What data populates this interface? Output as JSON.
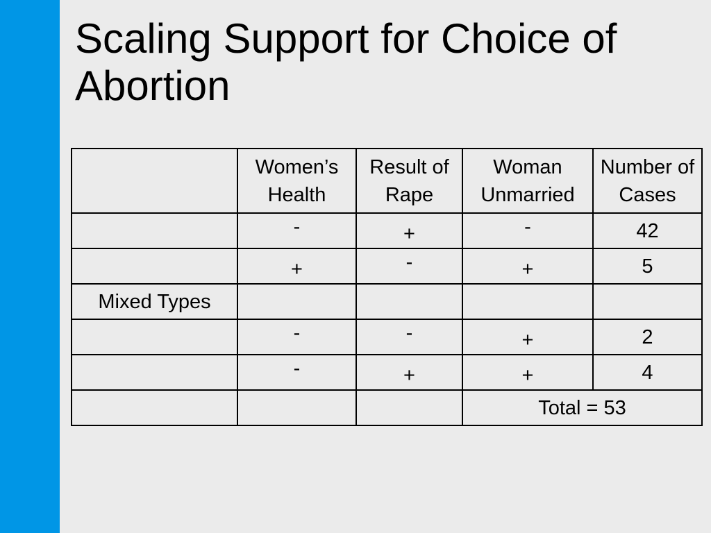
{
  "slide": {
    "title": "Scaling Support for Choice of Abortion",
    "accent_color": "#0096e6",
    "background_color": "#ebebeb"
  },
  "table": {
    "headers": [
      "",
      "Women’s Health",
      "Result of Rape",
      "Woman Unmarried",
      "Number of Cases"
    ],
    "rows": [
      [
        "",
        "-",
        "+",
        "-",
        "42"
      ],
      [
        "",
        "+",
        "-",
        "+",
        "5"
      ],
      [
        "Mixed Types",
        "",
        "",
        "",
        ""
      ],
      [
        "",
        "-",
        "-",
        "+",
        "2"
      ],
      [
        "",
        "-",
        "+",
        "+",
        "4"
      ]
    ],
    "total_label": "Total = 53"
  }
}
